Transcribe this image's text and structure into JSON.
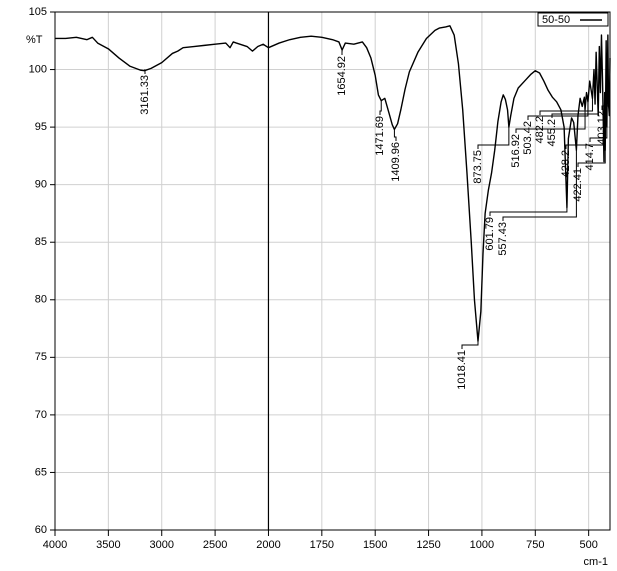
{
  "chart_data": {
    "type": "line",
    "y_label": "%T",
    "x_label": "cm-1",
    "xlim": [
      4000,
      400
    ],
    "xaxis_break": 2000,
    "xticks": [
      4000,
      3500,
      3000,
      2500,
      2000,
      1750,
      1500,
      1250,
      1000,
      750,
      500
    ],
    "ylim": [
      60,
      105
    ],
    "yticks": [
      60,
      65,
      70,
      75,
      80,
      85,
      90,
      95,
      100,
      105
    ],
    "grid": true,
    "legend": "upper right",
    "x": [
      4000,
      3900,
      3800,
      3700,
      3650,
      3600,
      3500,
      3400,
      3300,
      3200,
      3161.33,
      3100,
      3000,
      2900,
      2850,
      2800,
      2700,
      2600,
      2500,
      2400,
      2360,
      2330,
      2300,
      2200,
      2150,
      2100,
      2050,
      2000,
      1950,
      1900,
      1850,
      1800,
      1750,
      1700,
      1670,
      1654.92,
      1640,
      1600,
      1560,
      1540,
      1520,
      1500,
      1485,
      1471.69,
      1455,
      1435,
      1420,
      1409.96,
      1395,
      1380,
      1360,
      1340,
      1300,
      1260,
      1220,
      1200,
      1170,
      1150,
      1130,
      1110,
      1090,
      1070,
      1050,
      1035,
      1018.41,
      1005,
      995,
      985,
      970,
      955,
      940,
      925,
      910,
      900,
      890,
      880,
      873.75,
      865,
      850,
      830,
      800,
      770,
      750,
      730,
      710,
      690,
      670,
      650,
      630,
      615,
      601.79,
      595,
      580,
      570,
      557.43,
      550,
      540,
      530,
      520,
      516.92,
      510,
      503.42,
      495,
      482.2,
      475,
      470,
      465,
      455.2,
      450,
      445,
      440,
      435,
      428.2,
      425,
      422.41,
      418,
      414.7,
      410,
      407,
      403.12,
      400
    ],
    "series": [
      {
        "name": "50-50",
        "color": "#000000",
        "values": [
          102.7,
          102.7,
          102.8,
          102.6,
          102.8,
          102.3,
          101.8,
          101.0,
          100.3,
          99.95,
          99.9,
          100.1,
          100.6,
          101.4,
          101.6,
          101.9,
          102.0,
          102.1,
          102.2,
          102.3,
          101.9,
          102.4,
          102.3,
          102.0,
          101.6,
          102.0,
          102.2,
          101.9,
          102.3,
          102.6,
          102.8,
          102.9,
          102.8,
          102.6,
          102.4,
          101.7,
          102.3,
          102.2,
          102.4,
          101.9,
          101.0,
          99.5,
          97.8,
          97.3,
          97.5,
          96.2,
          95.2,
          94.8,
          95.3,
          96.5,
          98.3,
          99.8,
          101.5,
          102.7,
          103.4,
          103.6,
          103.7,
          103.8,
          103.0,
          100.5,
          96.5,
          91.0,
          85.0,
          80.0,
          76.4,
          79.0,
          84.0,
          87.5,
          89.5,
          91.0,
          93.0,
          95.5,
          97.2,
          97.8,
          97.4,
          96.5,
          95.0,
          96.0,
          97.5,
          98.4,
          99.0,
          99.6,
          99.9,
          99.7,
          99.0,
          98.2,
          97.6,
          97.2,
          96.5,
          95.0,
          88.0,
          94.0,
          95.8,
          95.4,
          93.0,
          96.0,
          97.5,
          96.8,
          97.6,
          96.5,
          98.0,
          97.2,
          99.0,
          97.5,
          100.0,
          97.0,
          101.5,
          96.0,
          102.0,
          98.0,
          103.0,
          99.0,
          92.0,
          98.0,
          93.0,
          102.5,
          95.0,
          103.0,
          97.0,
          96.0,
          101.0
        ]
      }
    ],
    "peaks": [
      {
        "x": 3161.33,
        "y": 99.9
      },
      {
        "x": 1654.92,
        "y": 101.7
      },
      {
        "x": 1471.69,
        "y": 97.3
      },
      {
        "x": 1409.96,
        "y": 94.8
      },
      {
        "x": 1018.41,
        "y": 76.4
      },
      {
        "x": 873.75,
        "y": 95.0
      },
      {
        "x": 601.79,
        "y": 88.0
      },
      {
        "x": 557.43,
        "y": 93.0
      },
      {
        "x": 516.92,
        "y": 96.5
      },
      {
        "x": 503.42,
        "y": 97.2
      },
      {
        "x": 482.2,
        "y": 97.5
      },
      {
        "x": 455.2,
        "y": 96.0
      },
      {
        "x": 428.2,
        "y": 92.0
      },
      {
        "x": 422.41,
        "y": 93.0
      },
      {
        "x": 414.7,
        "y": 95.0
      },
      {
        "x": 403.12,
        "y": 96.0
      }
    ]
  }
}
